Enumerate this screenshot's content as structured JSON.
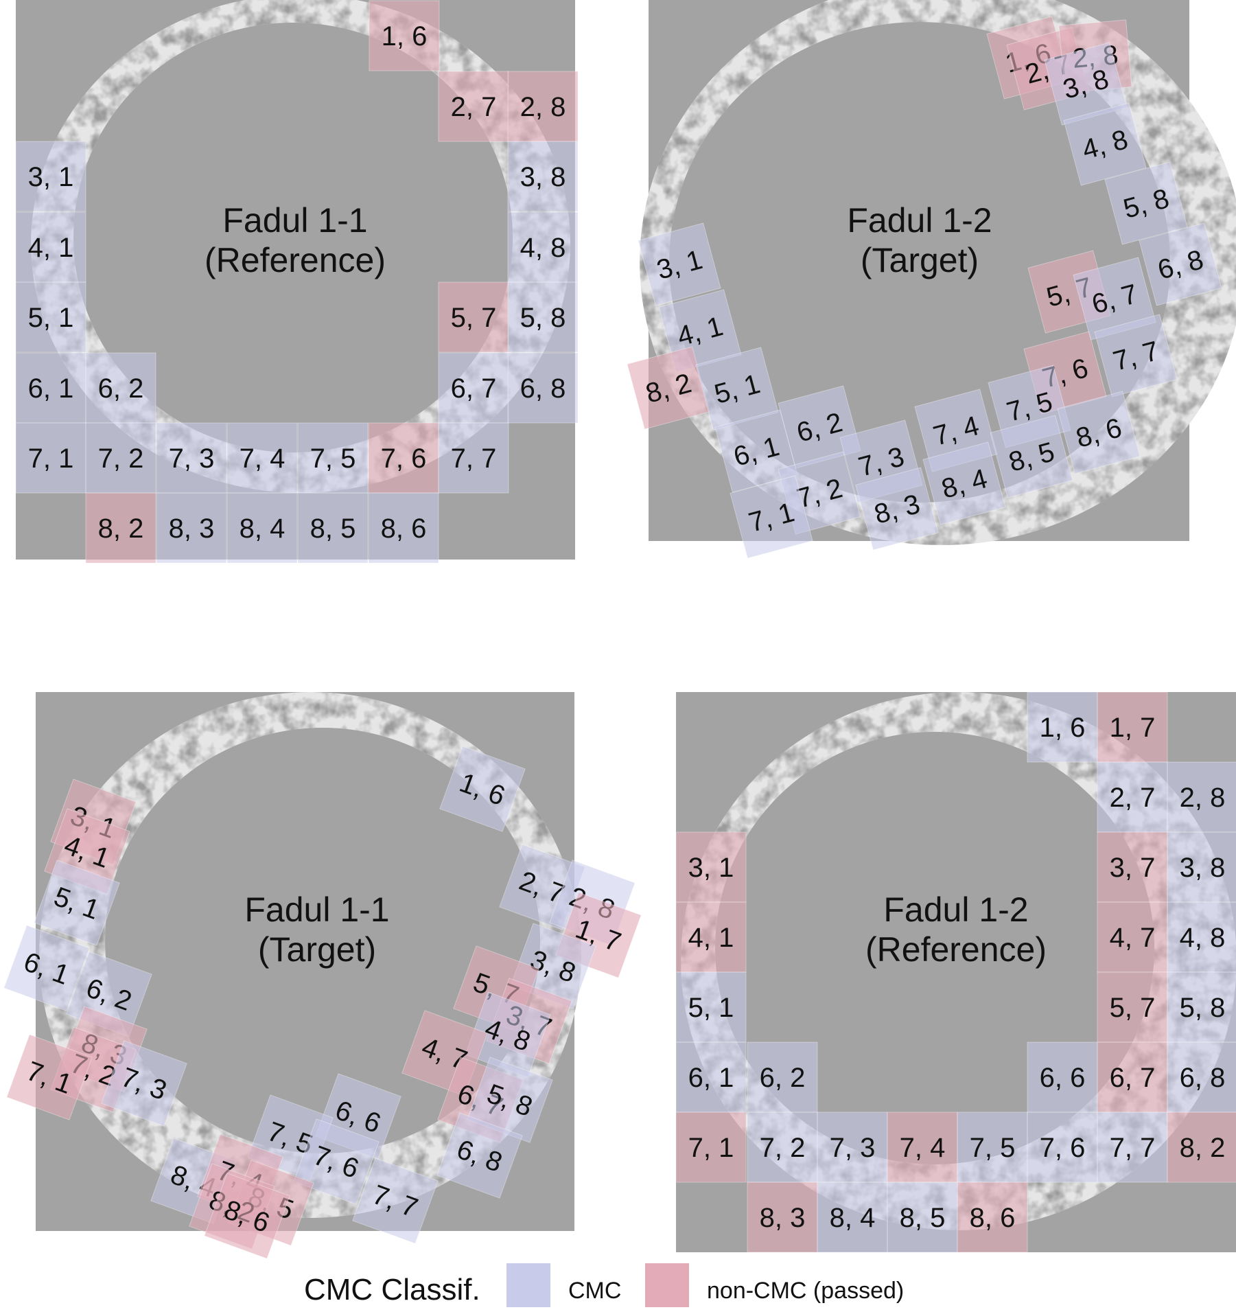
{
  "colors": {
    "background": "#a3a3a3",
    "cmc": "#c9cbea",
    "non_cmc": "#e3aab8",
    "ring_light": "#e6e6e6",
    "ring_dark": "#565656"
  },
  "panels": [
    {
      "title_line1": "Fadul 1-1",
      "title_line2": "(Reference)",
      "cells": [
        {
          "label": "1, 6",
          "status": "non-CMC"
        },
        {
          "label": "2, 7",
          "status": "non-CMC"
        },
        {
          "label": "2, 8",
          "status": "non-CMC"
        },
        {
          "label": "3, 1",
          "status": "CMC"
        },
        {
          "label": "3, 8",
          "status": "CMC"
        },
        {
          "label": "4, 1",
          "status": "CMC"
        },
        {
          "label": "4, 8",
          "status": "CMC"
        },
        {
          "label": "5, 1",
          "status": "CMC"
        },
        {
          "label": "5, 7",
          "status": "non-CMC"
        },
        {
          "label": "5, 8",
          "status": "CMC"
        },
        {
          "label": "6, 1",
          "status": "CMC"
        },
        {
          "label": "6, 2",
          "status": "CMC"
        },
        {
          "label": "6, 7",
          "status": "CMC"
        },
        {
          "label": "6, 8",
          "status": "CMC"
        },
        {
          "label": "7, 1",
          "status": "CMC"
        },
        {
          "label": "7, 2",
          "status": "CMC"
        },
        {
          "label": "7, 3",
          "status": "CMC"
        },
        {
          "label": "7, 4",
          "status": "CMC"
        },
        {
          "label": "7, 5",
          "status": "CMC"
        },
        {
          "label": "7, 6",
          "status": "non-CMC"
        },
        {
          "label": "7, 7",
          "status": "CMC"
        },
        {
          "label": "8, 2",
          "status": "non-CMC"
        },
        {
          "label": "8, 3",
          "status": "CMC"
        },
        {
          "label": "8, 4",
          "status": "CMC"
        },
        {
          "label": "8, 5",
          "status": "CMC"
        },
        {
          "label": "8, 6",
          "status": "CMC"
        }
      ]
    },
    {
      "title_line1": "Fadul 1-2",
      "title_line2": "(Target)",
      "cells": [
        {
          "label": "1, 6",
          "status": "non-CMC"
        },
        {
          "label": "2, 7",
          "status": "non-CMC"
        },
        {
          "label": "2, 8",
          "status": "non-CMC"
        },
        {
          "label": "3, 8",
          "status": "CMC"
        },
        {
          "label": "4, 8",
          "status": "CMC"
        },
        {
          "label": "5, 8",
          "status": "CMC"
        },
        {
          "label": "6, 8",
          "status": "CMC"
        },
        {
          "label": "3, 1",
          "status": "CMC"
        },
        {
          "label": "4, 1",
          "status": "CMC"
        },
        {
          "label": "5, 7",
          "status": "non-CMC"
        },
        {
          "label": "6, 7",
          "status": "CMC"
        },
        {
          "label": "8, 2",
          "status": "non-CMC"
        },
        {
          "label": "5, 1",
          "status": "CMC"
        },
        {
          "label": "7, 6",
          "status": "non-CMC"
        },
        {
          "label": "7, 7",
          "status": "CMC"
        },
        {
          "label": "6, 1",
          "status": "CMC"
        },
        {
          "label": "6, 2",
          "status": "CMC"
        },
        {
          "label": "7, 4",
          "status": "CMC"
        },
        {
          "label": "7, 5",
          "status": "CMC"
        },
        {
          "label": "7, 3",
          "status": "CMC"
        },
        {
          "label": "7, 2",
          "status": "CMC"
        },
        {
          "label": "7, 1",
          "status": "CMC"
        },
        {
          "label": "8, 6",
          "status": "CMC"
        },
        {
          "label": "8, 5",
          "status": "CMC"
        },
        {
          "label": "8, 4",
          "status": "CMC"
        },
        {
          "label": "8, 3",
          "status": "CMC"
        }
      ]
    },
    {
      "title_line1": "Fadul 1-1",
      "title_line2": "(Target)",
      "cells": [
        {
          "label": "1, 6",
          "status": "CMC"
        },
        {
          "label": "3, 1",
          "status": "non-CMC"
        },
        {
          "label": "4, 1",
          "status": "non-CMC"
        },
        {
          "label": "5, 1",
          "status": "CMC"
        },
        {
          "label": "6, 1",
          "status": "CMC"
        },
        {
          "label": "6, 2",
          "status": "CMC"
        },
        {
          "label": "2, 7",
          "status": "CMC"
        },
        {
          "label": "2, 8",
          "status": "CMC"
        },
        {
          "label": "1, 7",
          "status": "non-CMC"
        },
        {
          "label": "3, 8",
          "status": "CMC"
        },
        {
          "label": "5, 7",
          "status": "non-CMC"
        },
        {
          "label": "3, 7",
          "status": "non-CMC"
        },
        {
          "label": "4, 8",
          "status": "CMC"
        },
        {
          "label": "4, 7",
          "status": "non-CMC"
        },
        {
          "label": "8, 3",
          "status": "non-CMC"
        },
        {
          "label": "7, 2",
          "status": "non-CMC"
        },
        {
          "label": "7, 1",
          "status": "non-CMC"
        },
        {
          "label": "7, 3",
          "status": "CMC"
        },
        {
          "label": "6, 7",
          "status": "non-CMC"
        },
        {
          "label": "5, 8",
          "status": "CMC"
        },
        {
          "label": "6, 6",
          "status": "CMC"
        },
        {
          "label": "6, 8",
          "status": "CMC"
        },
        {
          "label": "7, 5",
          "status": "CMC"
        },
        {
          "label": "7, 6",
          "status": "CMC"
        },
        {
          "label": "7, 7",
          "status": "CMC"
        },
        {
          "label": "8, 4",
          "status": "CMC"
        },
        {
          "label": "7, 4",
          "status": "non-CMC"
        },
        {
          "label": "8, 5",
          "status": "non-CMC"
        },
        {
          "label": "8, 2",
          "status": "non-CMC"
        },
        {
          "label": "8, 6",
          "status": "non-CMC"
        }
      ]
    },
    {
      "title_line1": "Fadul 1-2",
      "title_line2": "(Reference)",
      "cells": [
        {
          "label": "1, 6",
          "status": "CMC"
        },
        {
          "label": "1, 7",
          "status": "non-CMC"
        },
        {
          "label": "2, 7",
          "status": "CMC"
        },
        {
          "label": "2, 8",
          "status": "CMC"
        },
        {
          "label": "3, 1",
          "status": "non-CMC"
        },
        {
          "label": "3, 7",
          "status": "non-CMC"
        },
        {
          "label": "3, 8",
          "status": "CMC"
        },
        {
          "label": "4, 1",
          "status": "non-CMC"
        },
        {
          "label": "4, 7",
          "status": "non-CMC"
        },
        {
          "label": "4, 8",
          "status": "CMC"
        },
        {
          "label": "5, 1",
          "status": "CMC"
        },
        {
          "label": "5, 7",
          "status": "non-CMC"
        },
        {
          "label": "5, 8",
          "status": "CMC"
        },
        {
          "label": "6, 1",
          "status": "CMC"
        },
        {
          "label": "6, 2",
          "status": "CMC"
        },
        {
          "label": "6, 6",
          "status": "CMC"
        },
        {
          "label": "6, 7",
          "status": "non-CMC"
        },
        {
          "label": "6, 8",
          "status": "CMC"
        },
        {
          "label": "7, 1",
          "status": "non-CMC"
        },
        {
          "label": "7, 2",
          "status": "CMC"
        },
        {
          "label": "7, 3",
          "status": "CMC"
        },
        {
          "label": "7, 4",
          "status": "non-CMC"
        },
        {
          "label": "7, 5",
          "status": "CMC"
        },
        {
          "label": "7, 6",
          "status": "CMC"
        },
        {
          "label": "7, 7",
          "status": "CMC"
        },
        {
          "label": "8, 2",
          "status": "non-CMC"
        },
        {
          "label": "8, 3",
          "status": "non-CMC"
        },
        {
          "label": "8, 4",
          "status": "CMC"
        },
        {
          "label": "8, 5",
          "status": "CMC"
        },
        {
          "label": "8, 6",
          "status": "non-CMC"
        }
      ]
    }
  ],
  "legend": {
    "title": "CMC Classif.",
    "items": [
      {
        "label": "CMC",
        "status": "CMC"
      },
      {
        "label": "non-CMC (passed)",
        "status": "non-CMC"
      }
    ]
  }
}
